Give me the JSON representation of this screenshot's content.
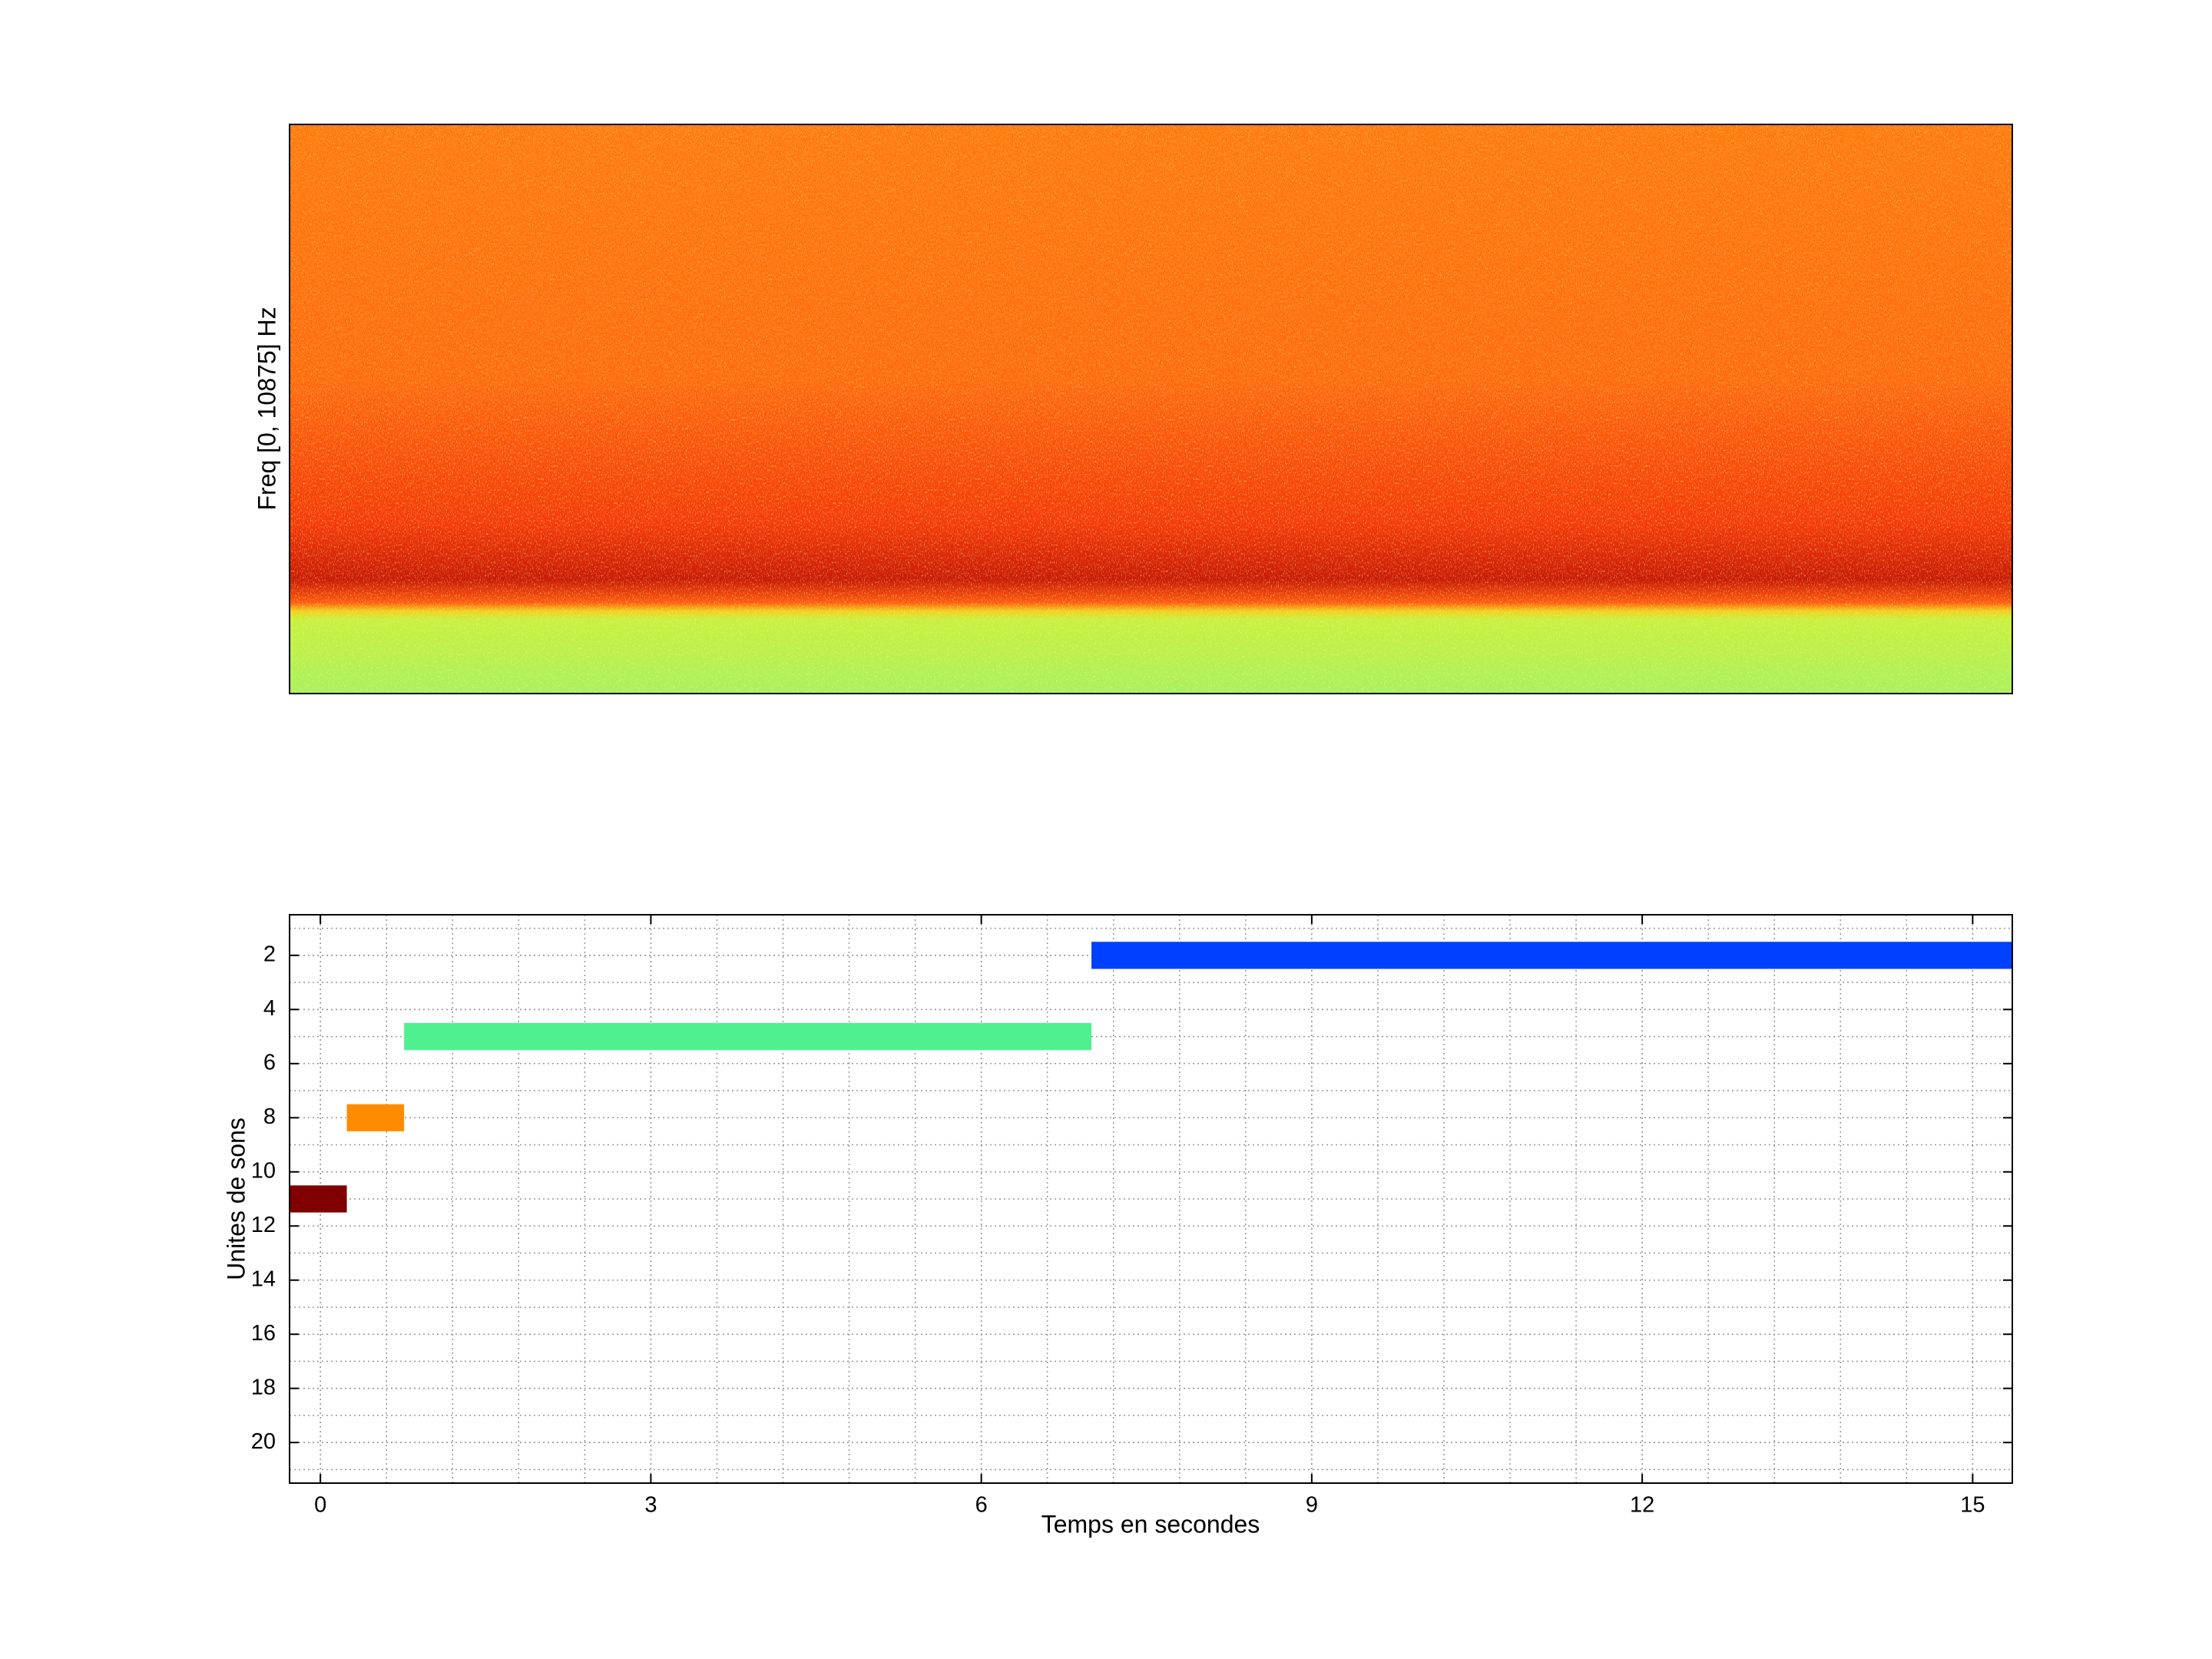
{
  "chart_data": [
    {
      "type": "spectrogram",
      "ylabel": "Freq [0, 10875] Hz"
    },
    {
      "type": "timeline",
      "xlabel": "Temps en secondes",
      "ylabel": "Unites de sons",
      "xlim": [
        -0.28,
        15.36
      ],
      "xticks": [
        0,
        3,
        6,
        9,
        12,
        15
      ],
      "ylim": [
        0.5,
        21.5
      ],
      "yticks": [
        2,
        4,
        6,
        8,
        10,
        12,
        14,
        16,
        18,
        20
      ],
      "y_reversed": true,
      "grid": true,
      "minor_grid": true,
      "bars": [
        {
          "unit": 2,
          "start": 7.0,
          "end": 15.36,
          "color": "#0040ff"
        },
        {
          "unit": 5,
          "start": 0.76,
          "end": 7.0,
          "color": "#50f090"
        },
        {
          "unit": 8,
          "start": 0.24,
          "end": 0.76,
          "color": "#ff8c00"
        },
        {
          "unit": 11,
          "start": -0.28,
          "end": 0.24,
          "color": "#800000"
        }
      ]
    }
  ]
}
